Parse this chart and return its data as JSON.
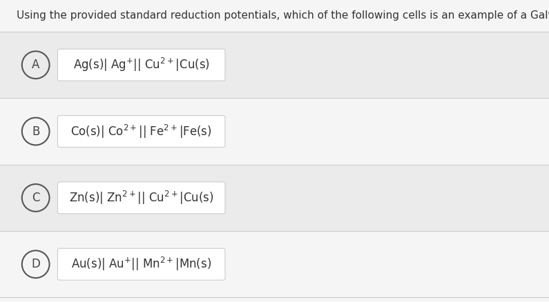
{
  "title": "Using the provided standard reduction potentials, which of the following cells is an example of a Galvanic cell?",
  "title_fontsize": 11,
  "background_color": "#f5f5f5",
  "panel_color_even": "#ebebeb",
  "panel_color_odd": "#f5f5f5",
  "separator_color": "#cccccc",
  "options": [
    {
      "label": "A",
      "formula": "Ag(s)$|$ Ag$^{+}$$||$ Cu$^{2+}$$|$Cu(s)"
    },
    {
      "label": "B",
      "formula": "Co(s)$|$ Co$^{2+}$$||$ Fe$^{2+}$$|$Fe(s)"
    },
    {
      "label": "C",
      "formula": "Zn(s)$|$ Zn$^{2+}$$||$ Cu$^{2+}$$|$Cu(s)"
    },
    {
      "label": "D",
      "formula": "Au(s)$|$ Au$^{+}$$||$ Mn$^{2+}$$|$Mn(s)"
    }
  ],
  "circle_color": "#555555",
  "circle_linewidth": 1.5,
  "label_fontsize": 12,
  "formula_fontsize": 12,
  "formula_box_color": "#ffffff",
  "formula_box_edge": "#cccccc",
  "title_color": "#333333",
  "label_color": "#444444",
  "formula_color": "#333333",
  "band_tops": [
    0.895,
    0.675,
    0.455,
    0.235
  ],
  "band_bottoms": [
    0.675,
    0.455,
    0.235,
    0.015
  ]
}
